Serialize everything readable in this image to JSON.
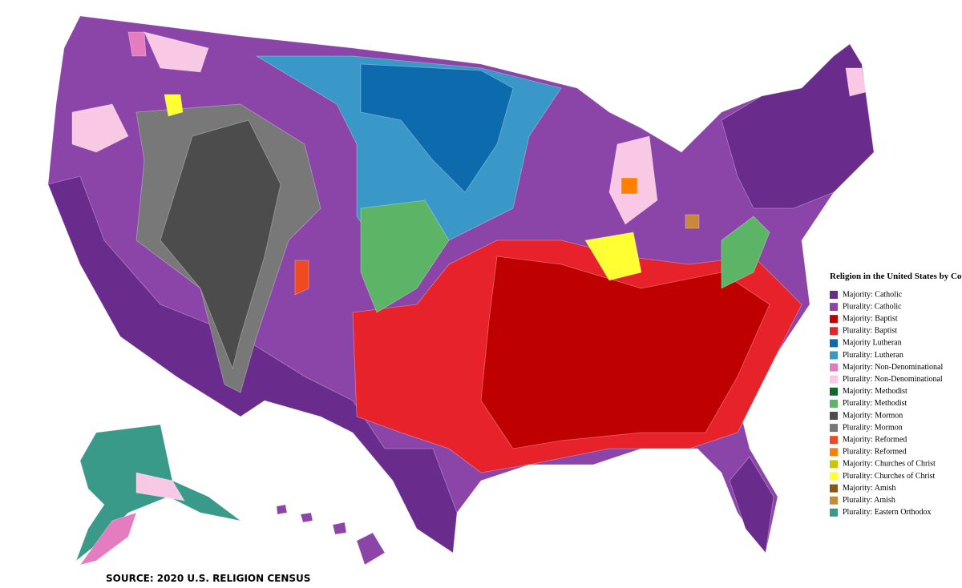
{
  "legend": {
    "title": "Religion in the United States by County",
    "items": [
      {
        "label": "Majority: Catholic",
        "color": "#6a2c8c"
      },
      {
        "label": "Plurality: Catholic",
        "color": "#8b45a8"
      },
      {
        "label": "Majority: Baptist",
        "color": "#bf0000"
      },
      {
        "label": "Plurality: Baptist",
        "color": "#e8222a"
      },
      {
        "label": "Majority Lutheran",
        "color": "#0c6aad"
      },
      {
        "label": "Plurality: Lutheran",
        "color": "#3a98c8"
      },
      {
        "label": "Majority: Non-Denominational",
        "color": "#e67cc0"
      },
      {
        "label": "Plurality: Non-Denominational",
        "color": "#f8c8e4"
      },
      {
        "label": "Majority: Methodist",
        "color": "#0e6b2c"
      },
      {
        "label": "Plurality: Methodist",
        "color": "#5cb567"
      },
      {
        "label": "Majority: Mormon",
        "color": "#4c4c4c"
      },
      {
        "label": "Plurality: Mormon",
        "color": "#787878"
      },
      {
        "label": "Majority: Reformed",
        "color": "#f04a20"
      },
      {
        "label": "Plurality: Reformed",
        "color": "#ff8000"
      },
      {
        "label": "Majority: Churches of Christ",
        "color": "#c8c800"
      },
      {
        "label": "Plurality: Churches of Christ",
        "color": "#ffff33"
      },
      {
        "label": "Majority: Amish",
        "color": "#8b5512"
      },
      {
        "label": "Plurality: Amish",
        "color": "#c88a3a"
      },
      {
        "label": "Plurality: Eastern Orthodox",
        "color": "#3a9a8a"
      }
    ]
  },
  "source": "SOURCE: 2020 U.S. RELIGION CENSUS"
}
